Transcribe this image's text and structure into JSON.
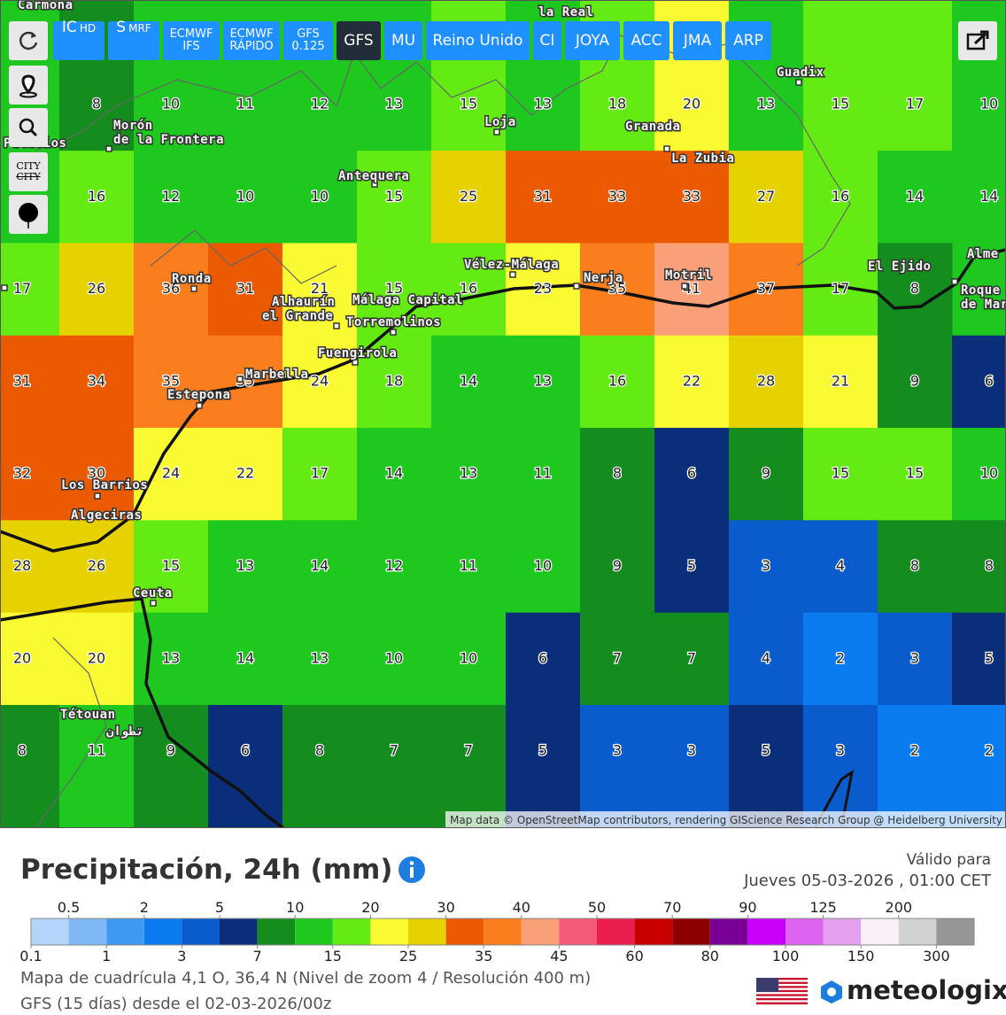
{
  "toolbar": {
    "models": [
      {
        "main": "IC",
        "sub": "HD"
      },
      {
        "main": "S",
        "sub": "MRF"
      },
      {
        "main": "ECMWF",
        "sub": "IFS"
      },
      {
        "main": "ECMWF",
        "sub": "RÁPIDO"
      },
      {
        "main": "GFS",
        "sub": "0.125"
      },
      {
        "main": "GFS"
      },
      {
        "main": "MU"
      },
      {
        "main": "Reino Unido"
      },
      {
        "main": "CI"
      },
      {
        "main": "JOYA"
      },
      {
        "main": "ACC"
      },
      {
        "main": "JMA"
      },
      {
        "main": "ARP"
      }
    ],
    "city_button": "CITY"
  },
  "map": {
    "grid": [
      [
        null,
        8,
        10,
        11,
        12,
        13,
        15,
        13,
        18,
        20,
        13,
        15,
        17,
        10
      ],
      [
        null,
        16,
        12,
        10,
        10,
        15,
        25,
        31,
        33,
        33,
        27,
        16,
        14,
        14
      ],
      [
        17,
        26,
        36,
        31,
        21,
        15,
        16,
        23,
        35,
        41,
        37,
        17,
        8,
        null
      ],
      [
        31,
        34,
        35,
        35,
        24,
        18,
        14,
        13,
        16,
        22,
        28,
        21,
        9,
        6
      ],
      [
        32,
        30,
        24,
        22,
        17,
        14,
        13,
        11,
        8,
        6,
        9,
        15,
        15,
        10
      ],
      [
        28,
        26,
        15,
        13,
        14,
        12,
        11,
        10,
        9,
        5,
        3,
        4,
        8,
        8
      ],
      [
        20,
        20,
        13,
        14,
        13,
        10,
        10,
        6,
        7,
        7,
        4,
        2,
        3,
        5
      ],
      [
        8,
        11,
        9,
        6,
        8,
        7,
        7,
        5,
        3,
        3,
        5,
        3,
        2,
        2
      ]
    ],
    "places": [
      "Carmona",
      "la Real",
      "Guadix",
      "Morón",
      "de la Frontera",
      "Palacios",
      "Antequera",
      "Loja",
      "Granada",
      "La Zubia",
      "Vélez-Málaga",
      "Nerja",
      "Motril",
      "El Ejido",
      "Alme",
      "Roque",
      "de Mar",
      "Ronda",
      "Alhaurín",
      "el Grande",
      "Málaga Capital",
      "Torremolinos",
      "Fuengirola",
      "Marbella",
      "Estepona",
      "Los Barrios",
      "Algeciras",
      "Ceuta",
      "Tétouan",
      "تطوان"
    ],
    "attribution": "Map data © OpenStreetMap contributors, rendering GIScience Research Group @ Heidelberg University"
  },
  "header": {
    "title": "Precipitación, 24h (mm)",
    "valid_label": "Válido para",
    "valid_time": "Jueves 05-03-2026 , 01:00 CET"
  },
  "legend": {
    "thresholds": [
      0.1,
      0.5,
      1,
      2,
      3,
      5,
      7,
      10,
      15,
      20,
      25,
      30,
      35,
      40,
      45,
      50,
      60,
      70,
      80,
      90,
      100,
      125,
      150,
      200,
      300
    ],
    "colors": [
      "#b3d5fa",
      "#80b8f5",
      "#3d9af0",
      "#0a7cf0",
      "#0a5ccc",
      "#0a2e7a",
      "#148c1e",
      "#1ec81e",
      "#64eb14",
      "#fafa32",
      "#e6d200",
      "#eb5a00",
      "#fa7d1e",
      "#faa078",
      "#f55a78",
      "#eb1e50",
      "#c80000",
      "#8c0000",
      "#780096",
      "#c800fa",
      "#dc64f0",
      "#e6a0f0",
      "#faf0fa",
      "#d2d2d2",
      "#969696"
    ]
  },
  "footer": {
    "grid_info": "Mapa de cuadrícula 4,1 O, 36,4 N (Nivel de zoom 4 / Resolución 400 m)",
    "run_info": "GFS (15 días) desde el 02-03-2026/00z",
    "brand": "meteologix"
  }
}
